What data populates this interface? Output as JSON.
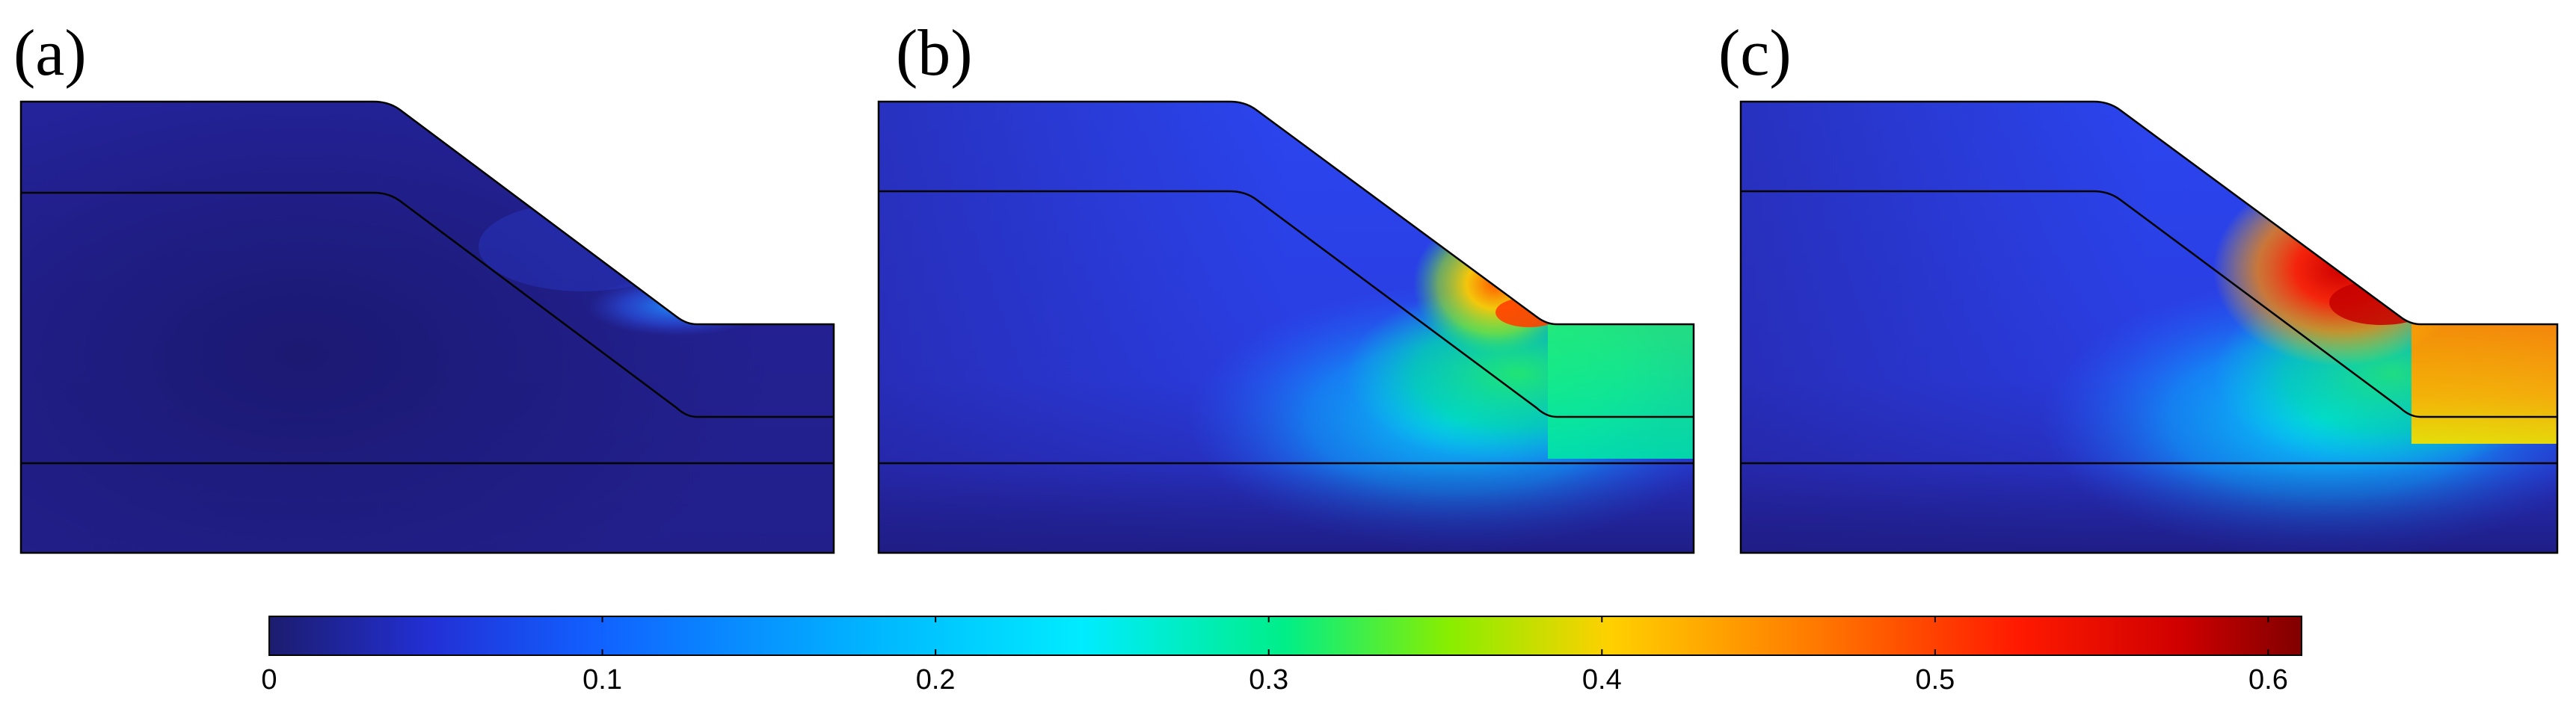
{
  "panels": [
    {
      "id": "a",
      "label": "(a)"
    },
    {
      "id": "b",
      "label": "(b)"
    },
    {
      "id": "c",
      "label": "(c)"
    }
  ],
  "colorbar": {
    "min": 0,
    "max": 0.61,
    "ticks": [
      {
        "value": 0,
        "label": "0"
      },
      {
        "value": 0.1,
        "label": "0.1"
      },
      {
        "value": 0.2,
        "label": "0.2"
      },
      {
        "value": 0.3,
        "label": "0.3"
      },
      {
        "value": 0.4,
        "label": "0.4"
      },
      {
        "value": 0.5,
        "label": "0.5"
      },
      {
        "value": 0.6,
        "label": "0.6"
      }
    ],
    "colormap": [
      "#1a1a66",
      "#2244ee",
      "#0088ff",
      "#00e5ff",
      "#00ee88",
      "#aaee00",
      "#ffcc00",
      "#ff6600",
      "#ee0000",
      "#880000"
    ]
  },
  "colors": {
    "background": "#ffffff",
    "outline": "#000000",
    "low": "#1f208f",
    "base": "#2c3fe0",
    "mid": "#00c8ff",
    "green": "#00ee88",
    "yellow": "#f0e000",
    "orange": "#ff7a00",
    "red": "#ff1a00",
    "darkred": "#c40000"
  }
}
